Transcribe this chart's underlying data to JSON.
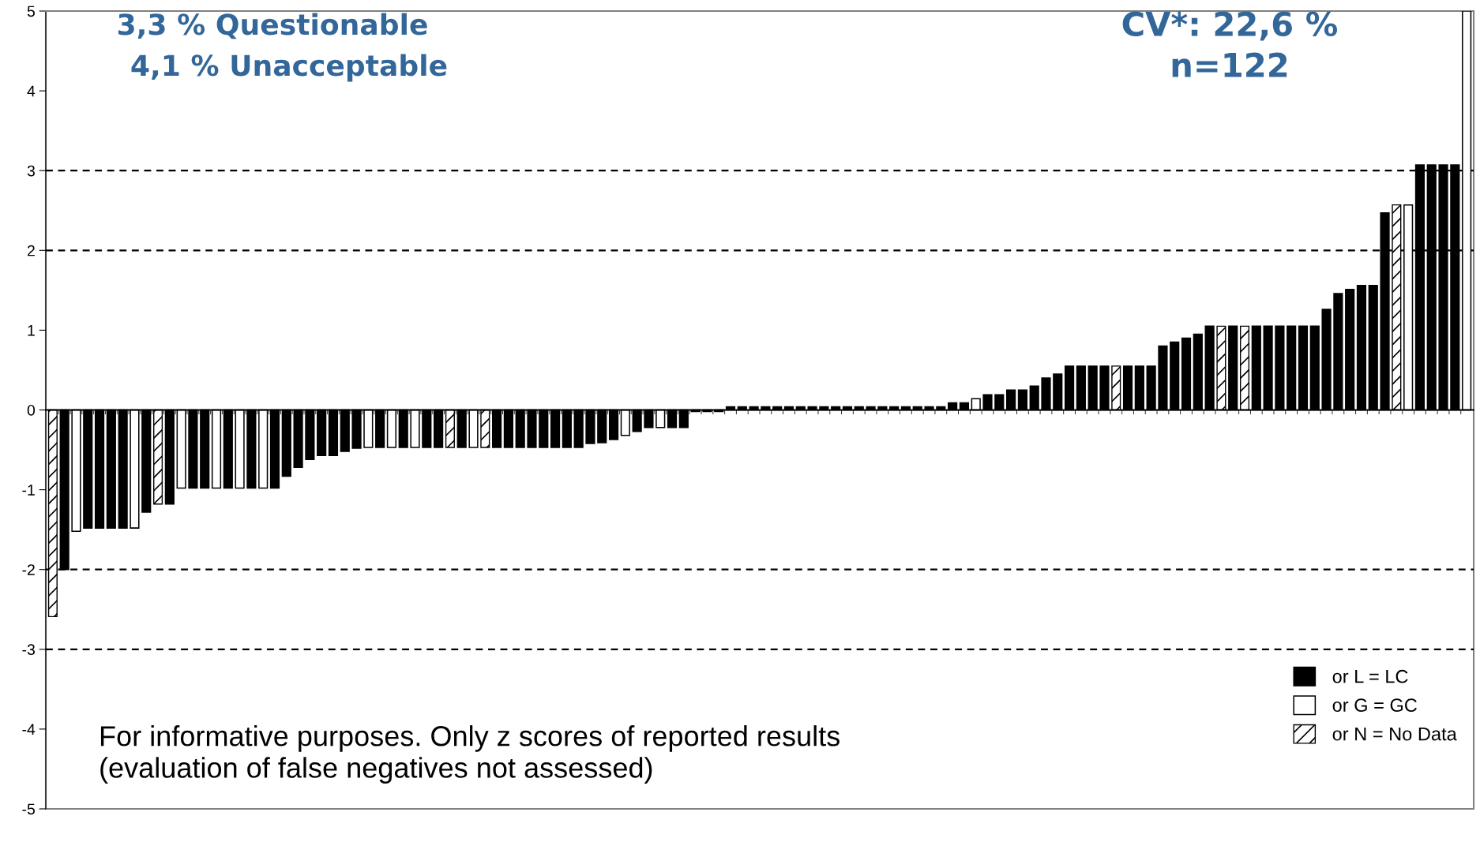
{
  "chart_data": {
    "type": "bar",
    "stacked": true,
    "categories": [
      null,
      null,
      null,
      null,
      null,
      null,
      null,
      null,
      null,
      null,
      null,
      null,
      null,
      null,
      null,
      null,
      null,
      null,
      null,
      null,
      null,
      null,
      null,
      null,
      null,
      null,
      null,
      null,
      null,
      null,
      null,
      null,
      null,
      null,
      null,
      null,
      null,
      null,
      null,
      null,
      null,
      null,
      null,
      null,
      null,
      null,
      null,
      null,
      null,
      null,
      null,
      null,
      null,
      null,
      null,
      null,
      null,
      null,
      null,
      null,
      null,
      null,
      null,
      null,
      null,
      null,
      null,
      null,
      null,
      null,
      null,
      null,
      null,
      null,
      null,
      null,
      null,
      null,
      null,
      null,
      null,
      null,
      null,
      null,
      null,
      null,
      null,
      null,
      null,
      null,
      null,
      null,
      null,
      null,
      null,
      null,
      null,
      null,
      null,
      null,
      null,
      null,
      null,
      null,
      null,
      null,
      null,
      null,
      null,
      null,
      null,
      null,
      null,
      null,
      null,
      null,
      null,
      null,
      null,
      null,
      null,
      null
    ],
    "series": [
      {
        "name": "or L = LC",
        "color": "#000000",
        "values": [
          null,
          -2.0,
          null,
          -1.48,
          -1.48,
          -1.48,
          -1.48,
          null,
          -1.28,
          null,
          -1.18,
          null,
          -0.98,
          -0.98,
          null,
          -0.98,
          null,
          -0.98,
          null,
          -0.98,
          -0.83,
          -0.72,
          -0.62,
          -0.57,
          -0.57,
          -0.52,
          -0.48,
          null,
          -0.47,
          null,
          -0.47,
          null,
          -0.47,
          -0.47,
          null,
          -0.47,
          null,
          null,
          -0.47,
          -0.47,
          -0.47,
          -0.47,
          -0.47,
          -0.47,
          -0.47,
          -0.47,
          -0.42,
          -0.41,
          -0.37,
          null,
          -0.27,
          -0.22,
          null,
          -0.22,
          -0.22,
          -0.02,
          -0.02,
          -0.02,
          0.04,
          0.04,
          0.04,
          0.04,
          0.04,
          0.04,
          0.04,
          0.04,
          0.04,
          0.04,
          0.04,
          0.04,
          0.04,
          0.04,
          0.04,
          0.04,
          0.04,
          0.04,
          0.04,
          0.09,
          0.09,
          null,
          0.19,
          0.19,
          0.25,
          0.25,
          0.3,
          0.4,
          0.45,
          0.55,
          0.55,
          0.55,
          0.55,
          null,
          0.55,
          0.55,
          0.55,
          0.8,
          0.85,
          0.9,
          0.95,
          1.05,
          null,
          1.05,
          null,
          1.05,
          1.05,
          1.05,
          1.05,
          1.05,
          1.05,
          1.26,
          1.46,
          1.51,
          1.56,
          1.56,
          2.47,
          null,
          null,
          3.07,
          3.07,
          3.07,
          3.07,
          null
        ]
      },
      {
        "name": "or G = GC",
        "color": "#ffffff",
        "values": [
          null,
          null,
          -1.52,
          null,
          null,
          null,
          null,
          -1.48,
          null,
          null,
          null,
          -0.98,
          null,
          null,
          -0.98,
          null,
          -0.98,
          null,
          -0.98,
          null,
          null,
          null,
          null,
          null,
          null,
          null,
          null,
          -0.47,
          null,
          -0.47,
          null,
          -0.47,
          null,
          null,
          null,
          null,
          -0.47,
          null,
          null,
          null,
          null,
          null,
          null,
          null,
          null,
          null,
          null,
          null,
          null,
          -0.32,
          null,
          null,
          -0.22,
          null,
          null,
          null,
          null,
          null,
          null,
          null,
          null,
          null,
          null,
          null,
          null,
          null,
          null,
          null,
          null,
          null,
          null,
          null,
          null,
          null,
          null,
          null,
          null,
          null,
          null,
          0.14,
          null,
          null,
          null,
          null,
          null,
          null,
          null,
          null,
          null,
          null,
          null,
          null,
          null,
          null,
          null,
          null,
          null,
          null,
          null,
          null,
          null,
          null,
          null,
          null,
          null,
          null,
          null,
          null,
          null,
          null,
          null,
          null,
          null,
          null,
          null,
          null,
          2.57,
          null,
          null,
          null,
          null,
          5
        ]
      },
      {
        "name": "or N = No Data",
        "color": "#000000",
        "values": [
          -2.59,
          null,
          null,
          null,
          null,
          null,
          null,
          null,
          null,
          -1.18,
          null,
          null,
          null,
          null,
          null,
          null,
          null,
          null,
          null,
          null,
          null,
          null,
          null,
          null,
          null,
          null,
          null,
          null,
          null,
          null,
          null,
          null,
          null,
          null,
          -0.47,
          null,
          null,
          -0.47,
          null,
          null,
          null,
          null,
          null,
          null,
          null,
          null,
          null,
          null,
          null,
          null,
          null,
          null,
          null,
          null,
          null,
          null,
          null,
          null,
          null,
          null,
          null,
          null,
          null,
          null,
          null,
          null,
          null,
          null,
          null,
          null,
          null,
          null,
          null,
          null,
          null,
          null,
          null,
          null,
          null,
          null,
          null,
          null,
          null,
          null,
          null,
          null,
          null,
          null,
          null,
          null,
          null,
          0.55,
          null,
          null,
          null,
          null,
          null,
          null,
          null,
          null,
          1.05,
          null,
          1.05,
          null,
          null,
          null,
          null,
          null,
          null,
          null,
          null,
          null,
          null,
          null,
          null,
          2.57,
          null,
          null,
          null,
          null,
          null,
          null
        ]
      }
    ],
    "ylim": [
      -5,
      5
    ],
    "yticks": [
      -5,
      -4,
      -3,
      -2,
      -1,
      0,
      1,
      2,
      3,
      4,
      5
    ],
    "ref_lines": [
      {
        "axis": "y",
        "value": 3,
        "color": "#000000",
        "line_style": "dashed"
      },
      {
        "axis": "y",
        "value": 2,
        "color": "#000000",
        "line_style": "dashed"
      },
      {
        "axis": "y",
        "value": -2,
        "color": "#000000",
        "line_style": "dashed"
      },
      {
        "axis": "y",
        "value": -3,
        "color": "#000000",
        "line_style": "dashed"
      }
    ],
    "legend": "bottom right",
    "annotations": [
      "3,3 % Questionable",
      "4,1 % Unacceptable",
      "CV*: 22,6 %",
      "n=122",
      "For informative purposes. Only z scores of reported results\n(evaluation of false negatives not assessed)"
    ]
  }
}
